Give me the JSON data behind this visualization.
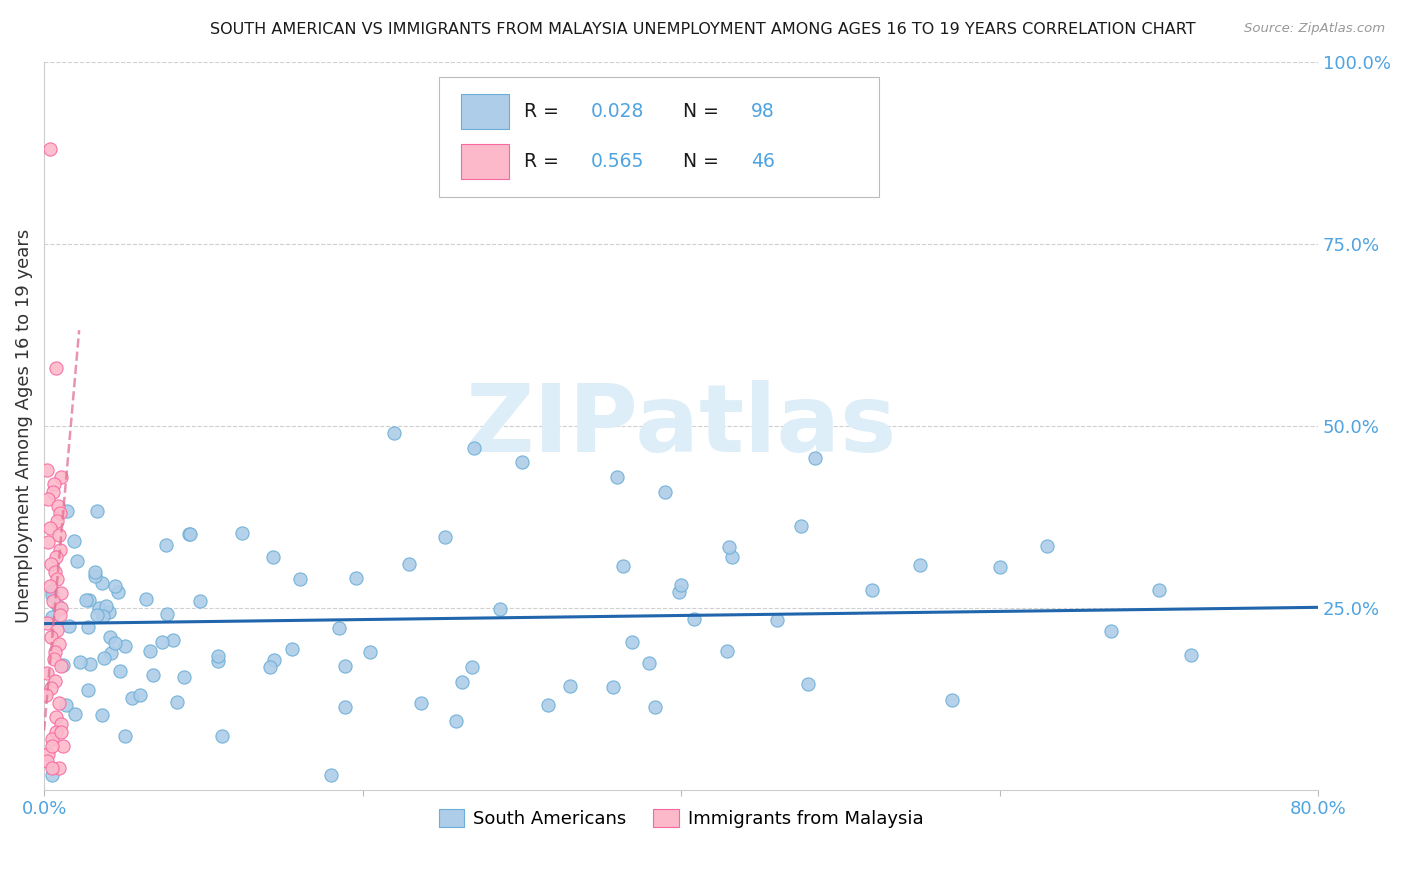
{
  "title": "SOUTH AMERICAN VS IMMIGRANTS FROM MALAYSIA UNEMPLOYMENT AMONG AGES 16 TO 19 YEARS CORRELATION CHART",
  "source": "Source: ZipAtlas.com",
  "ylabel": "Unemployment Among Ages 16 to 19 years",
  "xlim": [
    0.0,
    0.8
  ],
  "ylim": [
    0.0,
    1.0
  ],
  "xtick_vals": [
    0.0,
    0.2,
    0.4,
    0.6,
    0.8
  ],
  "xtick_labels": [
    "0.0%",
    "",
    "",
    "",
    "80.0%"
  ],
  "ytick_vals_right": [
    1.0,
    0.75,
    0.5,
    0.25
  ],
  "ytick_labels_right": [
    "100.0%",
    "75.0%",
    "50.0%",
    "25.0%"
  ],
  "blue_fill": "#aecde8",
  "blue_edge": "#6baed6",
  "pink_fill": "#fcb9ca",
  "pink_edge": "#f768a1",
  "blue_line_color": "#2166ac",
  "pink_line_color": "#e07090",
  "tick_label_color": "#4fa3e0",
  "grid_color": "#d0d0d0",
  "R_blue": 0.028,
  "N_blue": 98,
  "R_pink": 0.565,
  "N_pink": 46,
  "legend_label_blue": "South Americans",
  "legend_label_pink": "Immigrants from Malaysia",
  "watermark_text": "ZIPatlas",
  "watermark_color": "#ddeef8",
  "title_color": "#1a1a1a",
  "ylabel_color": "#333333",
  "legend_text_color": "#1a1a1a",
  "legend_rn_color": "#4fa3e0"
}
